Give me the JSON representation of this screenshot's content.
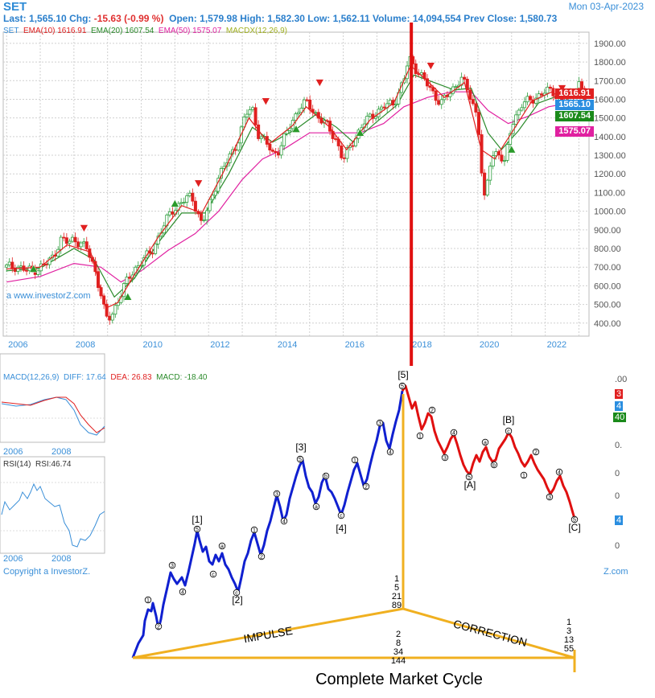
{
  "header": {
    "title": "SET",
    "date": "Mon 03-Apr-2023",
    "last_label": "Last:",
    "last": "1,565.10",
    "chg_label": "Chg:",
    "chg": "-15.63 (-0.99 %)",
    "open_label": "Open:",
    "open": "1,579.98",
    "high_label": "High:",
    "high": "1,582.30",
    "low_label": "Low:",
    "low": "1,562.11",
    "volume_label": "Volume:",
    "volume": "14,094,554",
    "prev_label": "Prev Close:",
    "prev": "1,580.73"
  },
  "indicators": {
    "symbol": "SET",
    "ema10_label": "EMA(10)",
    "ema10": "1616.91",
    "ema20_label": "EMA(20)",
    "ema20": "1607.54",
    "ema50_label": "EMA(50)",
    "ema50": "1575.07",
    "macdx_label": "MACDX(12,26,9)"
  },
  "badges": {
    "ema10": "1616.91",
    "last": "1565.10",
    "ema20": "1607.54",
    "ema50": "1575.07"
  },
  "colors": {
    "up": "#2e9e3e",
    "down": "#e02020",
    "ema10": "#e02020",
    "ema20": "#2a8a2a",
    "ema50": "#e020a0",
    "accent": "#3a8fd8",
    "impulse": "#1020d0",
    "correction": "#e01010",
    "cycle": "#f0b020"
  },
  "watermark": "a www.investorZ.com",
  "copyright": "Copyright a InvestorZ.",
  "copyright_right": "Z.com",
  "macd": {
    "label": "MACD(12,26,9)",
    "diff_label": "DIFF:",
    "diff": "17.64",
    "dea_label": "DEA:",
    "dea": "26.83",
    "macd_label": "MACD:",
    "macd": "-18.40",
    "x_labels": [
      "2006",
      "2008"
    ]
  },
  "rsi": {
    "label": "RSI(14)",
    "value_label": "RSI:",
    "value": "46.74",
    "x_labels": [
      "2006",
      "2008"
    ]
  },
  "partial_labels": {
    "macd_right": [
      ".00",
      "3",
      "4",
      "40"
    ],
    "rsi_right": [
      "0.",
      "0",
      "0",
      "0",
      "4"
    ]
  },
  "elliott": {
    "impulse_label": "IMPULSE",
    "correction_label": "CORRECTION",
    "caption": "Complete Market Cycle",
    "fib_top": [
      "1",
      "5",
      "21",
      "89"
    ],
    "fib_mid": [
      "2",
      "8",
      "34",
      "144"
    ],
    "fib_right": [
      "1",
      "3",
      "13",
      "55"
    ],
    "labels": {
      "w1": "[1]",
      "w2": "[2]",
      "w3": "[3]",
      "w4": "[4]",
      "w5": "[5]",
      "wA": "[A]",
      "wB": "[B]",
      "wC": "[C]"
    }
  },
  "chart_data": {
    "type": "candlestick",
    "title": "SET",
    "y_axis": {
      "ticks": [
        400,
        500,
        600,
        700,
        800,
        900,
        1000,
        1100,
        1200,
        1300,
        1400,
        1500,
        1600,
        1700,
        1800,
        1900
      ],
      "tick_labels": [
        "400.00",
        "500.00",
        "600.00",
        "700.00",
        "800.00",
        "900.00",
        "1000.00",
        "1100.00",
        "1200.00",
        "1300.00",
        "1400.00",
        "1500.00",
        "1600.00",
        "1700.00",
        "1800.00",
        "1900.00"
      ],
      "range": [
        330,
        1960
      ]
    },
    "x_axis": {
      "tick_labels": [
        "2006",
        "2008",
        "2010",
        "2012",
        "2014",
        "2016",
        "2018",
        "2020",
        "2022"
      ],
      "range": [
        2005.9,
        2023.3
      ]
    },
    "grid": true,
    "series_close": [
      [
        2006.0,
        700
      ],
      [
        2006.3,
        705
      ],
      [
        2006.6,
        680
      ],
      [
        2006.9,
        690
      ],
      [
        2007.2,
        720
      ],
      [
        2007.4,
        760
      ],
      [
        2007.6,
        850
      ],
      [
        2007.8,
        830
      ],
      [
        2008.0,
        850
      ],
      [
        2008.2,
        830
      ],
      [
        2008.4,
        790
      ],
      [
        2008.6,
        700
      ],
      [
        2008.8,
        560
      ],
      [
        2008.95,
        420
      ],
      [
        2009.1,
        430
      ],
      [
        2009.3,
        520
      ],
      [
        2009.5,
        600
      ],
      [
        2009.8,
        690
      ],
      [
        2010.0,
        730
      ],
      [
        2010.3,
        780
      ],
      [
        2010.6,
        900
      ],
      [
        2010.9,
        1000
      ],
      [
        2011.2,
        1050
      ],
      [
        2011.5,
        1080
      ],
      [
        2011.8,
        930
      ],
      [
        2012.0,
        1020
      ],
      [
        2012.3,
        1190
      ],
      [
        2012.6,
        1280
      ],
      [
        2012.9,
        1390
      ],
      [
        2013.1,
        1520
      ],
      [
        2013.3,
        1550
      ],
      [
        2013.5,
        1400
      ],
      [
        2013.7,
        1370
      ],
      [
        2013.9,
        1310
      ],
      [
        2014.1,
        1330
      ],
      [
        2014.4,
        1450
      ],
      [
        2014.7,
        1560
      ],
      [
        2014.9,
        1580
      ],
      [
        2015.2,
        1520
      ],
      [
        2015.5,
        1460
      ],
      [
        2015.8,
        1380
      ],
      [
        2016.0,
        1270
      ],
      [
        2016.3,
        1380
      ],
      [
        2016.6,
        1470
      ],
      [
        2016.9,
        1520
      ],
      [
        2017.2,
        1560
      ],
      [
        2017.5,
        1580
      ],
      [
        2017.8,
        1700
      ],
      [
        2017.95,
        1820
      ],
      [
        2018.1,
        1780
      ],
      [
        2018.3,
        1730
      ],
      [
        2018.6,
        1650
      ],
      [
        2018.9,
        1580
      ],
      [
        2019.2,
        1640
      ],
      [
        2019.5,
        1720
      ],
      [
        2019.8,
        1600
      ],
      [
        2020.0,
        1500
      ],
      [
        2020.1,
        1230
      ],
      [
        2020.2,
        1050
      ],
      [
        2020.4,
        1300
      ],
      [
        2020.6,
        1320
      ],
      [
        2020.8,
        1250
      ],
      [
        2021.0,
        1470
      ],
      [
        2021.3,
        1570
      ],
      [
        2021.6,
        1600
      ],
      [
        2021.9,
        1630
      ],
      [
        2022.2,
        1650
      ],
      [
        2022.5,
        1580
      ],
      [
        2022.8,
        1630
      ],
      [
        2023.0,
        1690
      ],
      [
        2023.2,
        1580
      ],
      [
        2023.25,
        1565
      ]
    ],
    "ema10": [
      [
        2006.0,
        690
      ],
      [
        2007.0,
        700
      ],
      [
        2007.8,
        820
      ],
      [
        2008.5,
        780
      ],
      [
        2008.95,
        480
      ],
      [
        2009.3,
        510
      ],
      [
        2009.8,
        660
      ],
      [
        2010.5,
        860
      ],
      [
        2011.2,
        1030
      ],
      [
        2011.8,
        990
      ],
      [
        2012.5,
        1230
      ],
      [
        2013.2,
        1500
      ],
      [
        2013.8,
        1360
      ],
      [
        2014.5,
        1460
      ],
      [
        2014.9,
        1560
      ],
      [
        2015.6,
        1450
      ],
      [
        2016.1,
        1330
      ],
      [
        2016.8,
        1490
      ],
      [
        2017.5,
        1580
      ],
      [
        2018.0,
        1780
      ],
      [
        2018.6,
        1680
      ],
      [
        2019.0,
        1610
      ],
      [
        2019.6,
        1690
      ],
      [
        2020.1,
        1330
      ],
      [
        2020.5,
        1280
      ],
      [
        2021.0,
        1420
      ],
      [
        2021.6,
        1590
      ],
      [
        2022.2,
        1640
      ],
      [
        2022.6,
        1590
      ],
      [
        2023.0,
        1660
      ],
      [
        2023.25,
        1617
      ]
    ],
    "ema20": [
      [
        2006.0,
        680
      ],
      [
        2007.0,
        695
      ],
      [
        2008.0,
        800
      ],
      [
        2008.6,
        740
      ],
      [
        2009.2,
        540
      ],
      [
        2009.8,
        640
      ],
      [
        2010.5,
        830
      ],
      [
        2011.2,
        990
      ],
      [
        2011.9,
        990
      ],
      [
        2012.6,
        1200
      ],
      [
        2013.3,
        1450
      ],
      [
        2013.9,
        1370
      ],
      [
        2014.6,
        1440
      ],
      [
        2015.2,
        1520
      ],
      [
        2015.8,
        1450
      ],
      [
        2016.3,
        1370
      ],
      [
        2017.0,
        1480
      ],
      [
        2017.6,
        1570
      ],
      [
        2018.1,
        1730
      ],
      [
        2018.7,
        1690
      ],
      [
        2019.3,
        1650
      ],
      [
        2019.8,
        1660
      ],
      [
        2020.3,
        1420
      ],
      [
        2020.7,
        1330
      ],
      [
        2021.2,
        1430
      ],
      [
        2021.8,
        1580
      ],
      [
        2022.4,
        1620
      ],
      [
        2022.9,
        1610
      ],
      [
        2023.25,
        1608
      ]
    ],
    "ema50": [
      [
        2006.0,
        620
      ],
      [
        2007.0,
        650
      ],
      [
        2008.0,
        720
      ],
      [
        2008.8,
        700
      ],
      [
        2009.4,
        620
      ],
      [
        2010.0,
        680
      ],
      [
        2010.8,
        790
      ],
      [
        2011.6,
        880
      ],
      [
        2012.3,
        1000
      ],
      [
        2013.0,
        1170
      ],
      [
        2013.6,
        1280
      ],
      [
        2014.3,
        1340
      ],
      [
        2015.0,
        1420
      ],
      [
        2015.8,
        1420
      ],
      [
        2016.5,
        1420
      ],
      [
        2017.2,
        1470
      ],
      [
        2017.8,
        1560
      ],
      [
        2018.5,
        1610
      ],
      [
        2019.2,
        1640
      ],
      [
        2019.8,
        1640
      ],
      [
        2020.3,
        1540
      ],
      [
        2020.9,
        1470
      ],
      [
        2021.5,
        1510
      ],
      [
        2022.1,
        1560
      ],
      [
        2022.7,
        1580
      ],
      [
        2023.25,
        1575
      ]
    ],
    "buy_signals": [
      [
        2006.8,
        690
      ],
      [
        2009.6,
        540
      ],
      [
        2011.0,
        1040
      ],
      [
        2014.6,
        1440
      ],
      [
        2016.5,
        1420
      ],
      [
        2021.0,
        1330
      ]
    ],
    "sell_signals": [
      [
        2008.3,
        910
      ],
      [
        2011.7,
        1150
      ],
      [
        2013.7,
        1590
      ],
      [
        2015.3,
        1690
      ],
      [
        2018.6,
        1780
      ],
      [
        2022.5,
        1660
      ]
    ],
    "vertical_marker_year": 2017.95
  }
}
